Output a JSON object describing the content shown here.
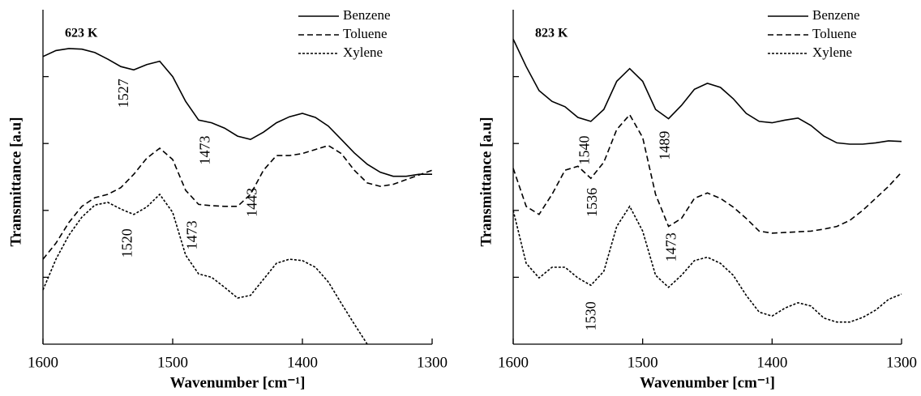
{
  "chart_data": [
    {
      "type": "line",
      "title": "623 K",
      "x_label": "Wavenumber [cm⁻¹]",
      "y_label": "Transmittance [a.u]",
      "xlim": [
        1600,
        1300
      ],
      "xticks": [
        1600,
        1500,
        1400,
        1300
      ],
      "ylim": [
        0,
        5
      ],
      "yticks": [
        1,
        2,
        3,
        4
      ],
      "x": [
        1600,
        1590,
        1580,
        1570,
        1560,
        1550,
        1540,
        1530,
        1520,
        1510,
        1500,
        1490,
        1480,
        1470,
        1460,
        1450,
        1440,
        1430,
        1420,
        1410,
        1400,
        1390,
        1380,
        1370,
        1360,
        1350,
        1340,
        1330,
        1320,
        1310,
        1300
      ],
      "series": [
        {
          "name": "Benzene",
          "color": "#000000",
          "style": "solid",
          "values": [
            4.3,
            4.39,
            4.42,
            4.41,
            4.36,
            4.26,
            4.15,
            4.1,
            4.18,
            4.23,
            4.0,
            3.63,
            3.35,
            3.31,
            3.23,
            3.11,
            3.06,
            3.17,
            3.31,
            3.4,
            3.45,
            3.39,
            3.26,
            3.06,
            2.86,
            2.69,
            2.57,
            2.51,
            2.51,
            2.54,
            2.54
          ]
        },
        {
          "name": "Toluene",
          "color": "#000000",
          "style": "dashed",
          "values": [
            1.27,
            1.51,
            1.82,
            2.06,
            2.19,
            2.24,
            2.34,
            2.54,
            2.78,
            2.93,
            2.76,
            2.3,
            2.09,
            2.07,
            2.06,
            2.06,
            2.24,
            2.6,
            2.82,
            2.82,
            2.85,
            2.91,
            2.97,
            2.85,
            2.6,
            2.41,
            2.36,
            2.39,
            2.46,
            2.53,
            2.6
          ]
        },
        {
          "name": "Xylene",
          "color": "#000000",
          "style": "dotted",
          "values": [
            0.81,
            1.27,
            1.63,
            1.9,
            2.08,
            2.12,
            2.02,
            1.94,
            2.05,
            2.24,
            1.97,
            1.33,
            1.05,
            1.0,
            0.85,
            0.69,
            0.73,
            0.97,
            1.21,
            1.27,
            1.25,
            1.15,
            0.93,
            0.61,
            0.3,
            0.0,
            null,
            null,
            null,
            null,
            null
          ]
        }
      ],
      "annotations": [
        {
          "text": "1527",
          "x": 1537,
          "y": 3.75
        },
        {
          "text": "1473",
          "x": 1474,
          "y": 2.9
        },
        {
          "text": "1443",
          "x": 1438,
          "y": 2.12
        },
        {
          "text": "1520",
          "x": 1534,
          "y": 1.51
        },
        {
          "text": "1473",
          "x": 1484,
          "y": 1.63
        }
      ]
    },
    {
      "type": "line",
      "title": "823 K",
      "x_label": "Wavenumber [cm⁻¹]",
      "y_label": "Transmittance [a.u]",
      "xlim": [
        1600,
        1300
      ],
      "xticks": [
        1600,
        1500,
        1400,
        1300
      ],
      "ylim": [
        0,
        5
      ],
      "yticks": [
        1,
        2,
        3,
        4
      ],
      "x": [
        1600,
        1590,
        1580,
        1570,
        1560,
        1550,
        1540,
        1530,
        1520,
        1510,
        1500,
        1490,
        1480,
        1470,
        1460,
        1450,
        1440,
        1430,
        1420,
        1410,
        1400,
        1390,
        1380,
        1370,
        1360,
        1350,
        1340,
        1330,
        1320,
        1310,
        1300
      ],
      "series": [
        {
          "name": "Benzene",
          "color": "#000000",
          "style": "solid",
          "values": [
            4.56,
            4.15,
            3.79,
            3.63,
            3.55,
            3.39,
            3.33,
            3.51,
            3.93,
            4.12,
            3.93,
            3.51,
            3.37,
            3.57,
            3.81,
            3.9,
            3.84,
            3.67,
            3.45,
            3.33,
            3.31,
            3.35,
            3.38,
            3.27,
            3.11,
            3.01,
            2.99,
            2.99,
            3.01,
            3.04,
            3.03
          ]
        },
        {
          "name": "Toluene",
          "color": "#000000",
          "style": "dashed",
          "values": [
            2.63,
            2.06,
            1.94,
            2.24,
            2.6,
            2.66,
            2.48,
            2.72,
            3.21,
            3.43,
            3.09,
            2.24,
            1.76,
            1.88,
            2.18,
            2.26,
            2.18,
            2.05,
            1.88,
            1.69,
            1.66,
            1.67,
            1.68,
            1.69,
            1.72,
            1.76,
            1.85,
            2.0,
            2.18,
            2.36,
            2.57
          ]
        },
        {
          "name": "Xylene",
          "color": "#000000",
          "style": "dotted",
          "values": [
            2.0,
            1.21,
            0.99,
            1.15,
            1.15,
            0.99,
            0.88,
            1.09,
            1.76,
            2.06,
            1.69,
            1.03,
            0.85,
            1.03,
            1.25,
            1.3,
            1.21,
            1.03,
            0.73,
            0.48,
            0.42,
            0.54,
            0.62,
            0.57,
            0.39,
            0.33,
            0.33,
            0.4,
            0.51,
            0.67,
            0.75
          ]
        }
      ],
      "annotations": [
        {
          "text": "1540",
          "x": 1544,
          "y": 2.9
        },
        {
          "text": "1489",
          "x": 1482,
          "y": 2.97
        },
        {
          "text": "1536",
          "x": 1538,
          "y": 2.12
        },
        {
          "text": "1473",
          "x": 1477,
          "y": 1.45
        },
        {
          "text": "1530",
          "x": 1539,
          "y": 0.42
        }
      ]
    }
  ]
}
